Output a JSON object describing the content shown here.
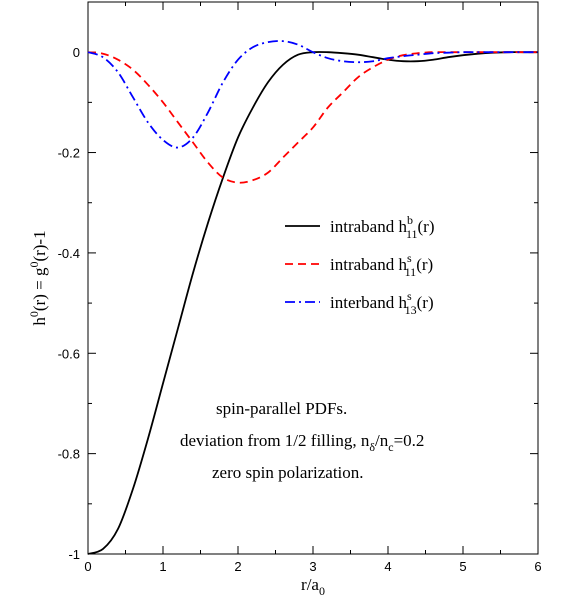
{
  "chart_data": {
    "type": "line",
    "xlabel": {
      "main": "r/a",
      "sub": "0"
    },
    "ylabel": {
      "p1": "h",
      "s1": "0",
      "p2": "(r) = g",
      "s2": "0",
      "p3": "(r)-1"
    },
    "xlim": [
      0,
      6
    ],
    "ylim": [
      -1,
      0.1
    ],
    "xticks": [
      "0",
      "1",
      "2",
      "3",
      "4",
      "5",
      "6"
    ],
    "yticks": [
      "-1",
      "-0.8",
      "-0.6",
      "-0.4",
      "-0.2",
      "0"
    ],
    "ytick_values": [
      -1,
      -0.8,
      -0.6,
      -0.4,
      -0.2,
      0
    ],
    "legend_position": "center-right",
    "series": [
      {
        "name": {
          "prefix": "intraband  h",
          "sup": "b",
          "sub": "11",
          "suffix": "(r)"
        },
        "color": "#000000",
        "dash": "solid",
        "x": [
          0,
          0.2,
          0.4,
          0.6,
          0.8,
          1.0,
          1.2,
          1.4,
          1.6,
          1.8,
          2.0,
          2.2,
          2.4,
          2.6,
          2.8,
          3.0,
          3.2,
          3.4,
          3.6,
          3.8,
          4.0,
          4.2,
          4.4,
          4.6,
          4.8,
          5.0,
          5.2,
          5.4,
          5.6,
          5.8,
          6.0
        ],
        "y": [
          -1.0,
          -0.99,
          -0.95,
          -0.87,
          -0.77,
          -0.66,
          -0.55,
          -0.44,
          -0.34,
          -0.25,
          -0.17,
          -0.11,
          -0.06,
          -0.025,
          -0.005,
          0.0,
          0.0,
          -0.002,
          -0.005,
          -0.01,
          -0.015,
          -0.018,
          -0.018,
          -0.015,
          -0.01,
          -0.006,
          -0.003,
          -0.001,
          0.0,
          0.0,
          0.0
        ]
      },
      {
        "name": {
          "prefix": "intraband  h",
          "sup": "s",
          "sub": "11",
          "suffix": "(r)"
        },
        "color": "#ff0000",
        "dash": "8,5",
        "x": [
          0,
          0.2,
          0.4,
          0.6,
          0.8,
          1.0,
          1.2,
          1.4,
          1.6,
          1.8,
          2.0,
          2.2,
          2.4,
          2.6,
          2.8,
          3.0,
          3.2,
          3.4,
          3.6,
          3.8,
          4.0,
          4.2,
          4.4,
          4.6,
          4.8,
          5.0,
          5.2,
          5.4,
          5.6,
          5.8,
          6.0
        ],
        "y": [
          0.0,
          -0.003,
          -0.015,
          -0.035,
          -0.065,
          -0.1,
          -0.14,
          -0.18,
          -0.22,
          -0.25,
          -0.26,
          -0.255,
          -0.24,
          -0.21,
          -0.18,
          -0.15,
          -0.11,
          -0.08,
          -0.05,
          -0.03,
          -0.015,
          -0.006,
          -0.002,
          0.0,
          0.0,
          0.0,
          0.0,
          0.0,
          0.0,
          0.0,
          0.0
        ]
      },
      {
        "name": {
          "prefix": "interband  h",
          "sup": "s",
          "sub": "13",
          "suffix": "(r)"
        },
        "color": "#0000ff",
        "dash": "10,4,2,4",
        "x": [
          0,
          0.2,
          0.4,
          0.6,
          0.8,
          1.0,
          1.2,
          1.4,
          1.6,
          1.8,
          2.0,
          2.2,
          2.4,
          2.6,
          2.8,
          3.0,
          3.2,
          3.4,
          3.6,
          3.8,
          4.0,
          4.2,
          4.4,
          4.6,
          4.8,
          5.0,
          5.2,
          5.4,
          5.6,
          5.8,
          6.0
        ],
        "y": [
          0.0,
          -0.01,
          -0.04,
          -0.09,
          -0.14,
          -0.175,
          -0.19,
          -0.17,
          -0.12,
          -0.06,
          -0.015,
          0.01,
          0.02,
          0.022,
          0.015,
          0.0,
          -0.012,
          -0.018,
          -0.02,
          -0.018,
          -0.012,
          -0.008,
          -0.005,
          -0.002,
          -0.001,
          0.0,
          0.0,
          0.0,
          0.0,
          0.0,
          0.0
        ]
      }
    ],
    "annotations": [
      {
        "parts": [
          {
            "t": "spin-parallel PDFs."
          }
        ]
      },
      {
        "parts": [
          {
            "t": "deviation from 1/2 filling, n"
          },
          {
            "t": "δ",
            "sub": true
          },
          {
            "t": "/n"
          },
          {
            "t": "c",
            "sub": true
          },
          {
            "t": "=0.2"
          }
        ]
      },
      {
        "parts": [
          {
            "t": "zero spin polarization."
          }
        ]
      }
    ]
  }
}
